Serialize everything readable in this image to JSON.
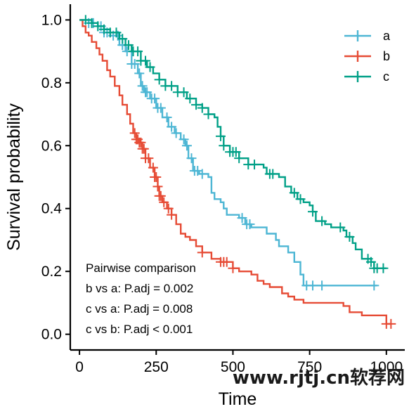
{
  "chart_data": {
    "type": "line",
    "step": true,
    "xlabel": "Time",
    "ylabel": "Survival probability",
    "xlim": [
      -30,
      1060
    ],
    "ylim": [
      -0.05,
      1.05
    ],
    "xticks": [
      0,
      250,
      500,
      750,
      1000
    ],
    "yticks": [
      0.0,
      0.2,
      0.4,
      0.6,
      0.8,
      1.0
    ],
    "ytick_labels": [
      "0.0",
      "0.2",
      "0.4",
      "0.6",
      "0.8",
      "1.0"
    ],
    "legend": {
      "placement": "top-right"
    },
    "series": [
      {
        "name": "a",
        "color": "#4DB6D4",
        "points": [
          [
            0,
            1.0
          ],
          [
            30,
            0.99
          ],
          [
            60,
            0.98
          ],
          [
            80,
            0.96
          ],
          [
            100,
            0.95
          ],
          [
            130,
            0.92
          ],
          [
            150,
            0.9
          ],
          [
            170,
            0.86
          ],
          [
            190,
            0.83
          ],
          [
            200,
            0.79
          ],
          [
            210,
            0.77
          ],
          [
            230,
            0.75
          ],
          [
            250,
            0.72
          ],
          [
            270,
            0.69
          ],
          [
            290,
            0.66
          ],
          [
            310,
            0.64
          ],
          [
            330,
            0.62
          ],
          [
            345,
            0.6
          ],
          [
            355,
            0.56
          ],
          [
            370,
            0.52
          ],
          [
            390,
            0.51
          ],
          [
            420,
            0.5
          ],
          [
            430,
            0.45
          ],
          [
            440,
            0.43
          ],
          [
            460,
            0.42
          ],
          [
            470,
            0.4
          ],
          [
            480,
            0.38
          ],
          [
            520,
            0.37
          ],
          [
            540,
            0.35
          ],
          [
            560,
            0.34
          ],
          [
            600,
            0.34
          ],
          [
            610,
            0.32
          ],
          [
            640,
            0.3
          ],
          [
            650,
            0.28
          ],
          [
            680,
            0.26
          ],
          [
            700,
            0.23
          ],
          [
            720,
            0.19
          ],
          [
            730,
            0.155
          ],
          [
            970,
            0.155
          ]
        ],
        "censor_x": [
          30,
          45,
          60,
          70,
          80,
          90,
          110,
          125,
          140,
          155,
          170,
          180,
          195,
          205,
          215,
          220,
          235,
          245,
          255,
          265,
          285,
          300,
          315,
          340,
          350,
          365,
          375,
          385,
          400,
          530,
          545,
          555,
          740,
          760,
          790,
          960
        ]
      },
      {
        "name": "b",
        "color": "#E64B35",
        "points": [
          [
            0,
            1.0
          ],
          [
            10,
            0.98
          ],
          [
            20,
            0.96
          ],
          [
            30,
            0.95
          ],
          [
            40,
            0.93
          ],
          [
            55,
            0.91
          ],
          [
            65,
            0.89
          ],
          [
            75,
            0.87
          ],
          [
            90,
            0.84
          ],
          [
            100,
            0.82
          ],
          [
            115,
            0.79
          ],
          [
            130,
            0.76
          ],
          [
            140,
            0.73
          ],
          [
            155,
            0.7
          ],
          [
            165,
            0.67
          ],
          [
            175,
            0.64
          ],
          [
            185,
            0.62
          ],
          [
            195,
            0.61
          ],
          [
            205,
            0.59
          ],
          [
            215,
            0.56
          ],
          [
            230,
            0.53
          ],
          [
            245,
            0.5
          ],
          [
            255,
            0.47
          ],
          [
            260,
            0.44
          ],
          [
            270,
            0.42
          ],
          [
            285,
            0.4
          ],
          [
            300,
            0.38
          ],
          [
            315,
            0.35
          ],
          [
            330,
            0.32
          ],
          [
            345,
            0.31
          ],
          [
            360,
            0.3
          ],
          [
            380,
            0.28
          ],
          [
            400,
            0.26
          ],
          [
            430,
            0.24
          ],
          [
            460,
            0.23
          ],
          [
            500,
            0.21
          ],
          [
            520,
            0.2
          ],
          [
            560,
            0.19
          ],
          [
            580,
            0.17
          ],
          [
            600,
            0.16
          ],
          [
            620,
            0.15
          ],
          [
            660,
            0.13
          ],
          [
            680,
            0.12
          ],
          [
            700,
            0.11
          ],
          [
            730,
            0.1
          ],
          [
            860,
            0.09
          ],
          [
            880,
            0.07
          ],
          [
            920,
            0.06
          ],
          [
            950,
            0.06
          ],
          [
            1000,
            0.033
          ],
          [
            1015,
            0.033
          ]
        ],
        "censor_x": [
          180,
          185,
          190,
          195,
          200,
          205,
          210,
          215,
          225,
          240,
          245,
          250,
          255,
          260,
          265,
          275,
          290,
          300,
          400,
          460,
          470,
          480,
          500,
          1000,
          1015
        ]
      },
      {
        "name": "c",
        "color": "#00A087",
        "points": [
          [
            0,
            1.0
          ],
          [
            40,
            0.99
          ],
          [
            60,
            0.98
          ],
          [
            80,
            0.97
          ],
          [
            100,
            0.96
          ],
          [
            130,
            0.94
          ],
          [
            150,
            0.92
          ],
          [
            170,
            0.9
          ],
          [
            200,
            0.87
          ],
          [
            220,
            0.85
          ],
          [
            240,
            0.83
          ],
          [
            260,
            0.81
          ],
          [
            280,
            0.79
          ],
          [
            320,
            0.77
          ],
          [
            350,
            0.75
          ],
          [
            380,
            0.73
          ],
          [
            400,
            0.72
          ],
          [
            420,
            0.7
          ],
          [
            440,
            0.69
          ],
          [
            450,
            0.66
          ],
          [
            460,
            0.63
          ],
          [
            470,
            0.6
          ],
          [
            490,
            0.58
          ],
          [
            520,
            0.56
          ],
          [
            550,
            0.54
          ],
          [
            600,
            0.53
          ],
          [
            610,
            0.51
          ],
          [
            650,
            0.5
          ],
          [
            670,
            0.47
          ],
          [
            690,
            0.45
          ],
          [
            710,
            0.43
          ],
          [
            730,
            0.42
          ],
          [
            750,
            0.41
          ],
          [
            760,
            0.39
          ],
          [
            770,
            0.36
          ],
          [
            800,
            0.35
          ],
          [
            820,
            0.34
          ],
          [
            860,
            0.33
          ],
          [
            870,
            0.31
          ],
          [
            890,
            0.29
          ],
          [
            900,
            0.27
          ],
          [
            920,
            0.24
          ],
          [
            950,
            0.23
          ],
          [
            960,
            0.21
          ],
          [
            1000,
            0.21
          ]
        ],
        "censor_x": [
          20,
          40,
          60,
          80,
          100,
          120,
          140,
          160,
          175,
          190,
          200,
          215,
          230,
          260,
          280,
          300,
          320,
          340,
          360,
          380,
          400,
          420,
          460,
          470,
          490,
          500,
          510,
          520,
          550,
          570,
          620,
          630,
          700,
          720,
          760,
          790,
          850,
          880,
          940,
          950,
          960,
          970,
          990
        ]
      }
    ],
    "annotations": [
      "Pairwise comparison",
      "b vs a: P.adj = 0.002",
      "c vs a: P.adj = 0.008",
      "c vs b: P.adj < 0.001"
    ]
  },
  "watermark": "www.rjtj.cn软荐网"
}
